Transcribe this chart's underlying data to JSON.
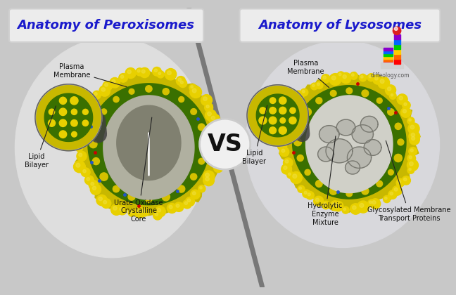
{
  "title_left": "Anatomy of Peroxisomes",
  "title_right": "Anatomy of Lysosomes",
  "vs_text": "VS",
  "title_color": "#1a1acc",
  "title_bg": "#e8e8e8",
  "labels_peroxisome": {
    "plasma_membrane": "Plasma\nMembrane",
    "lipid_bilayer": "Lipid\nBilayer",
    "urate_oxidase": "Urate Oxidase\nCrystalline\nCore"
  },
  "labels_lysosome": {
    "plasma_membrane": "Plasma\nMembrane",
    "lipid_bilayer": "Lipid\nBilayer",
    "hydrolytic": "Hydrolytic\nEnzyme\nMixture",
    "glycosylated": "Glycosylated Membrane\nTransport Proteins"
  },
  "yellow_dark": "#c8b800",
  "yellow_bright": "#e8d000",
  "yellow_sphere": "#d4c000",
  "green_dark": "#3a7000",
  "green_bright": "#5aaa00",
  "core_gray_light": "#b0b0a0",
  "core_gray_dark": "#808070",
  "lyso_interior": "#c8c8c0",
  "lyso_vesicle": "#a0a090",
  "bg_left": "#dedede",
  "bg_right": "#d8d8dc",
  "bg_overall": "#c8c8c8",
  "diag_color": "#787878"
}
